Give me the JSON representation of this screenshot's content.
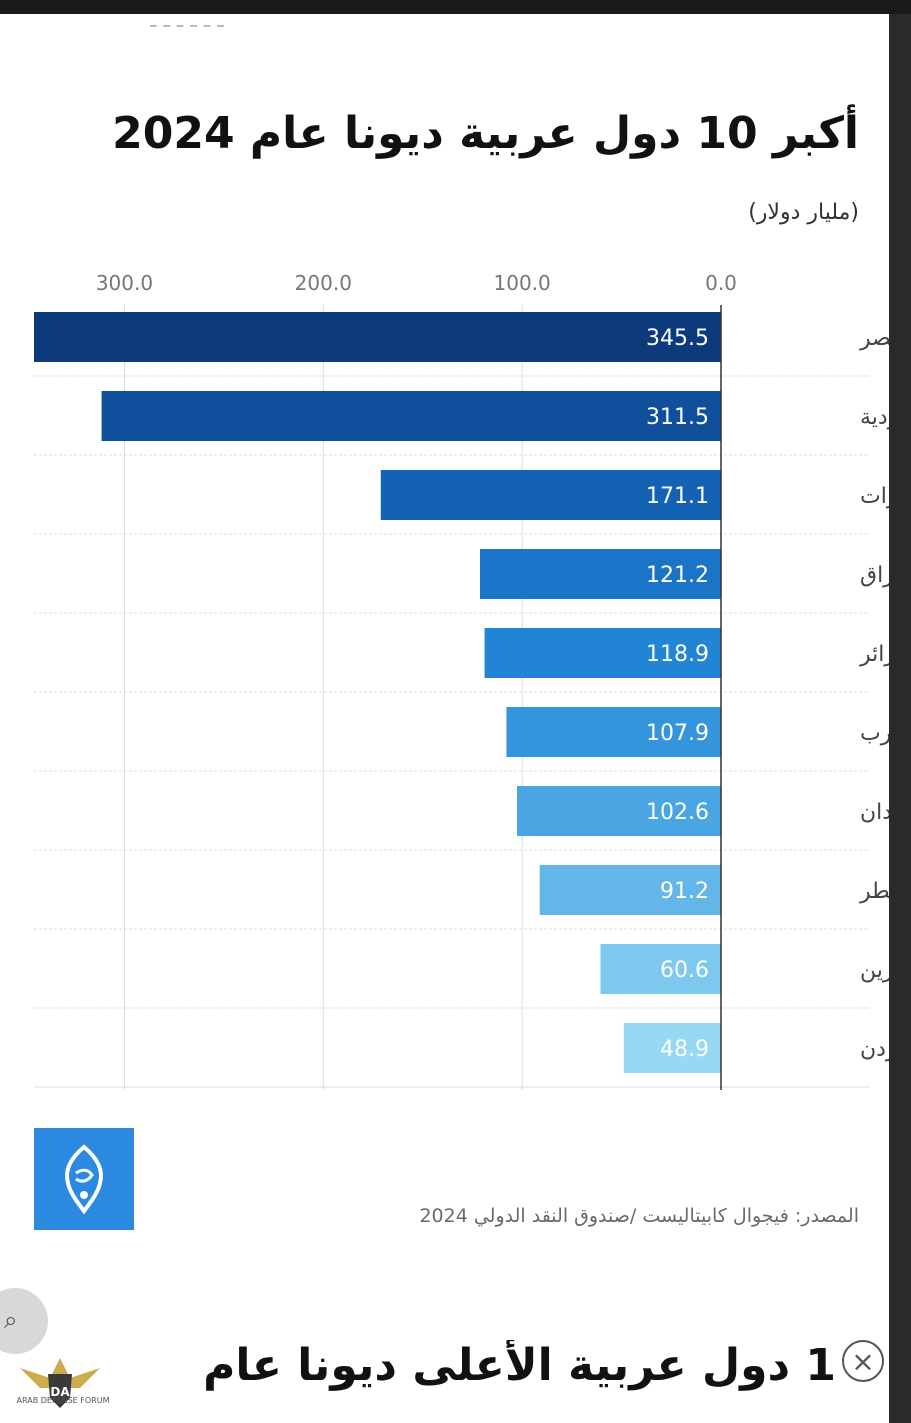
{
  "page": {
    "clipped_text": "ـ ـ ـ ـ ـ ـ",
    "title": "أكبر 10 دول عربية ديونا عام 2024",
    "unit": "(مليار دولار)",
    "source": "المصدر: فيجوال كابيتاليست /صندوق النقد الدولي 2024",
    "bottom_title": "1 دول عربية الأعلى ديونا عام",
    "close_label": "×",
    "lens_label": "⌕",
    "watermark_mark": "DA",
    "watermark_text": "ARAB DEFENSE FORUM"
  },
  "colors": {
    "logo": "#2b8ae0",
    "text_dark": "#111111",
    "grid": "#dddddd"
  },
  "icons": {
    "logo": "al-jazeera-logo-icon",
    "close": "close-icon",
    "lens": "google-lens-icon",
    "watermark": "arab-defense-forum-watermark"
  },
  "chart_data": {
    "type": "bar",
    "orientation": "horizontal",
    "direction": "rtl",
    "title": "أكبر 10 دول عربية ديونا عام 2024",
    "unit": "(مليار دولار)",
    "categories": [
      "مصر",
      "السعودية",
      "الإمارات",
      "العراق",
      "الجزائر",
      "المغرب",
      "السودان",
      "قطر",
      "البحرين",
      "الأردن"
    ],
    "values": [
      345.5,
      311.5,
      171.1,
      121.2,
      118.9,
      107.9,
      102.6,
      91.2,
      60.6,
      48.9
    ],
    "value_labels": [
      "345.5",
      "311.5",
      "171.1",
      "121.2",
      "118.9",
      "107.9",
      "102.6",
      "91.2",
      "60.6",
      "48.9"
    ],
    "bar_colors": [
      "#0d3a7a",
      "#0f4f9c",
      "#1462b4",
      "#1a74c8",
      "#2184d4",
      "#3595dc",
      "#4aa6e2",
      "#62b7e8",
      "#7cc8ee",
      "#97d8f2"
    ],
    "xticks": [
      0,
      100,
      200,
      300
    ],
    "xtick_labels": [
      "0.0",
      "100.0",
      "200.0",
      "300.0"
    ],
    "xlim": [
      0,
      345.5
    ],
    "grid": true
  }
}
